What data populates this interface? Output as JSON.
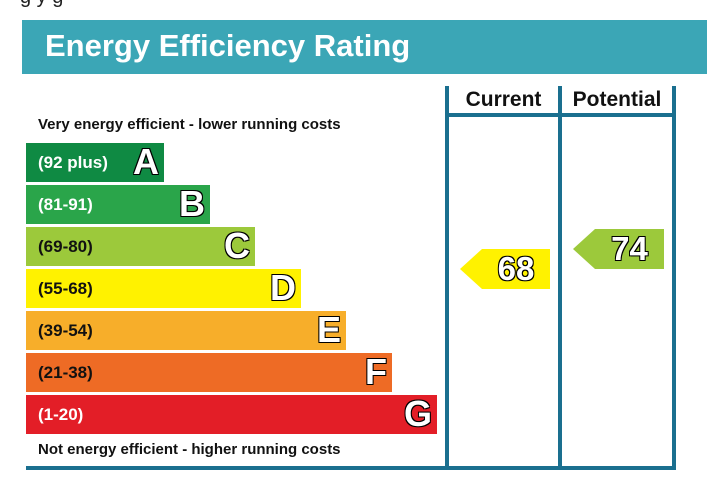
{
  "page": {
    "top_fragment": "g        y       g",
    "title": "Energy Efficiency Rating"
  },
  "columns": {
    "current": "Current",
    "potential": "Potential"
  },
  "notes": {
    "top": "Very energy efficient - lower running costs",
    "bottom": "Not energy efficient - higher running costs"
  },
  "bands": [
    {
      "range": "(92 plus)",
      "letter": "A",
      "color": "#0f8a43",
      "text_color": "#ffffff"
    },
    {
      "range": "(81-91)",
      "letter": "B",
      "color": "#2aa54a",
      "text_color": "#ffffff"
    },
    {
      "range": "(69-80)",
      "letter": "C",
      "color": "#9cc93b",
      "text_color": "#111111"
    },
    {
      "range": "(55-68)",
      "letter": "D",
      "color": "#fff200",
      "text_color": "#111111"
    },
    {
      "range": "(39-54)",
      "letter": "E",
      "color": "#f7ae2a",
      "text_color": "#111111"
    },
    {
      "range": "(21-38)",
      "letter": "F",
      "color": "#ee6b25",
      "text_color": "#111111"
    },
    {
      "range": "(1-20)",
      "letter": "G",
      "color": "#e31e27",
      "text_color": "#ffffff"
    }
  ],
  "ratings": {
    "current": {
      "value": "68",
      "band": "D",
      "color": "#fff200"
    },
    "potential": {
      "value": "74",
      "band": "C",
      "color": "#9cc93b"
    }
  },
  "colors": {
    "header": "#3ba6b6",
    "frame": "#1a6f8f"
  }
}
